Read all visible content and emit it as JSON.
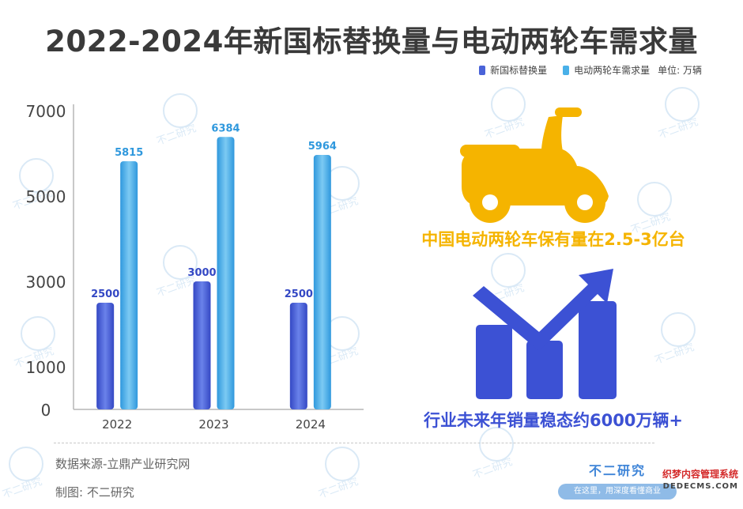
{
  "title": "2022-2024年新国标替换量与电动两轮车需求量",
  "legend": {
    "series_a_label": "新国标替换量",
    "series_b_label": "电动两轮车需求量",
    "unit_label": "单位: 万辆"
  },
  "colors": {
    "series_a": "#4a63d8",
    "series_b": "#49b0e8",
    "yellow": "#f5b400",
    "blue_text": "#3c51d4"
  },
  "chart_data": {
    "type": "bar",
    "categories": [
      "2022",
      "2023",
      "2024"
    ],
    "series": [
      {
        "name": "新国标替换量",
        "values": [
          2500,
          3000,
          2500
        ]
      },
      {
        "name": "电动两轮车需求量",
        "values": [
          5815,
          6384,
          5964
        ]
      }
    ],
    "y_ticks": [
      0,
      1000,
      3000,
      5000,
      7000
    ],
    "ylim": [
      0,
      7000
    ],
    "grid": false,
    "legend_position": "top-right"
  },
  "infographic": {
    "scooter_icon": "scooter-icon",
    "caption_top": "中国电动两轮车保有量在2.5-3亿台",
    "growth_icon": "growth-bars-arrow-icon",
    "caption_bottom": "行业未来年销量稳态约6000万辆+"
  },
  "footer": {
    "source": "数据来源-立鼎产业研究网",
    "maker": "制图: 不二研究",
    "logo_name": "不二研究",
    "logo_slogan": "在这里，用深度看懂商业",
    "corner_mark_title": "织梦内容管理系统",
    "corner_mark_sub": "DEDECMS.COM"
  },
  "watermark_text": "不二研究"
}
